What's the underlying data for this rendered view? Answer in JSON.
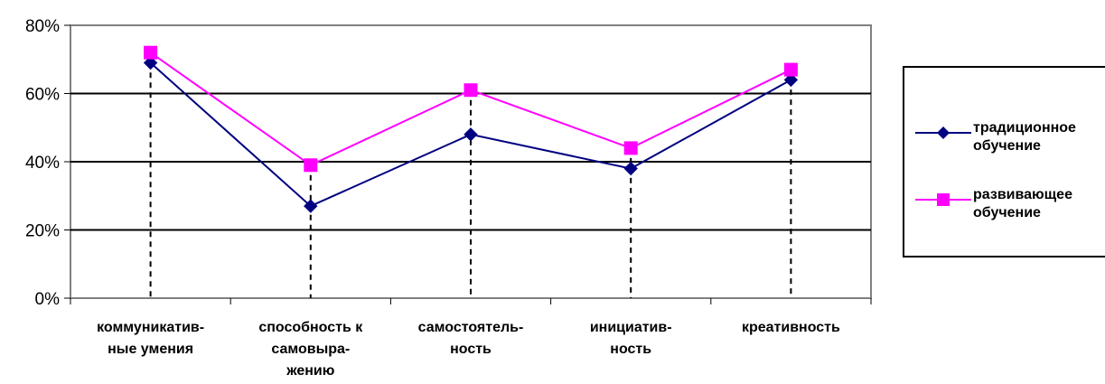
{
  "chart_data": {
    "type": "line",
    "categories": [
      [
        "коммуникатив-",
        "ные умения"
      ],
      [
        "способность к",
        "самовыра-",
        "жению"
      ],
      [
        "самостоятель-",
        "ность"
      ],
      [
        "инициатив-",
        "ность"
      ],
      [
        "креативность"
      ]
    ],
    "series": [
      {
        "name": "традиционное обучение",
        "values": [
          69,
          27,
          48,
          38,
          64
        ],
        "color": "#000080",
        "marker": "diamond"
      },
      {
        "name": "развивающее обучение",
        "values": [
          72,
          39,
          61,
          44,
          67
        ],
        "color": "#ff00ff",
        "marker": "square"
      }
    ],
    "ylim": [
      0,
      80
    ],
    "yticks": [
      "0%",
      "20%",
      "40%",
      "60%",
      "80%"
    ],
    "grid": true,
    "drop_lines": true,
    "legend": "right",
    "legend_labels": [
      [
        "традиционное",
        "обучение"
      ],
      [
        "развивающее",
        "обучение"
      ]
    ]
  }
}
